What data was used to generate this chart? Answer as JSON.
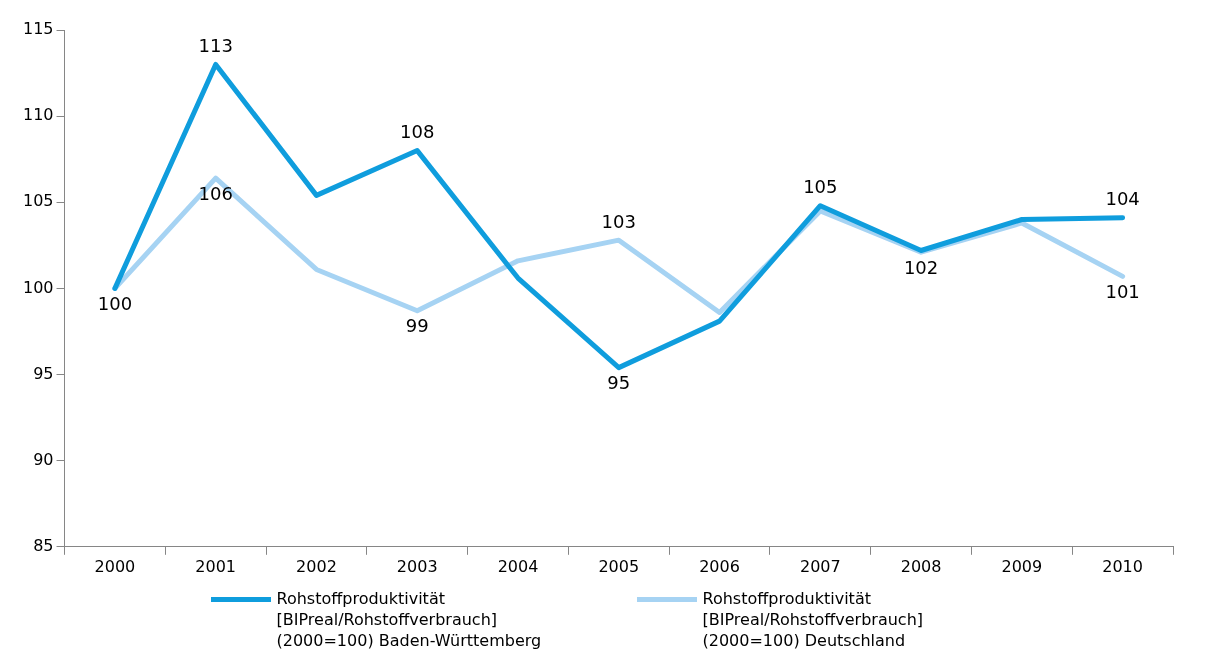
{
  "chart_data": {
    "type": "line",
    "categories": [
      "2000",
      "2001",
      "2002",
      "2003",
      "2004",
      "2005",
      "2006",
      "2007",
      "2008",
      "2009",
      "2010"
    ],
    "series": [
      {
        "name": "Rohstoffproduktivität [BIPreal/Rohstoffverbrauch] (2000=100) Baden-Württemberg",
        "color": "#0f9ddd",
        "values": [
          100,
          113,
          105.4,
          108,
          100.6,
          95.4,
          98.1,
          104.8,
          102.2,
          104,
          104.1
        ],
        "value_labels": [
          null,
          "113",
          null,
          "108",
          null,
          "95",
          null,
          "105",
          null,
          null,
          "104"
        ]
      },
      {
        "name": "Rohstoffproduktivität [BIPreal/Rohstoffverbrauch] (2000=100) Deutschland",
        "color": "#a6d3f3",
        "values": [
          100,
          106.4,
          101.1,
          98.7,
          101.6,
          102.8,
          98.6,
          104.5,
          102.1,
          103.8,
          100.7
        ],
        "value_labels": [
          "100",
          "106",
          null,
          "99",
          null,
          "103",
          null,
          null,
          "102",
          null,
          "101"
        ]
      }
    ],
    "ylim": [
      85,
      115
    ],
    "yticks": [
      85,
      90,
      95,
      100,
      105,
      110,
      115
    ],
    "grid": false,
    "legend": "bottom",
    "marker": "none",
    "line_style": "solid"
  }
}
